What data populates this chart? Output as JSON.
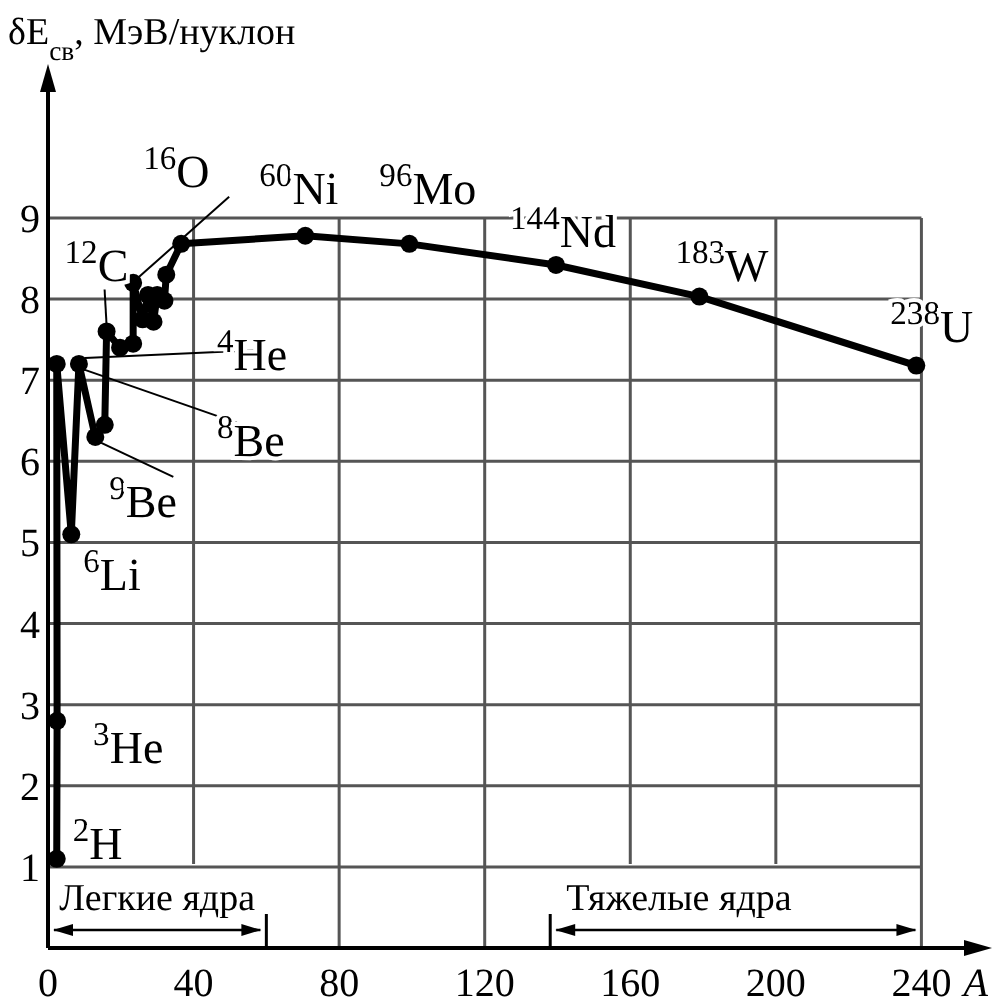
{
  "chart_data": {
    "type": "line",
    "ylabel": "δE$_{св}$, МэВ/нуклон",
    "xlabel": "A",
    "x": [
      2.4,
      2.5,
      2.4,
      6.4,
      8.5,
      13,
      15.6,
      16.1,
      19.8,
      23.4,
      23.4,
      26,
      27.5,
      29,
      30,
      32,
      32.5,
      36.6,
      70.7,
      99.3,
      139.6,
      179,
      238.6
    ],
    "series": [
      {
        "color": "#000000",
        "values": [
          1.1,
          2.8,
          7.2,
          5.1,
          7.2,
          6.3,
          6.45,
          7.6,
          7.4,
          7.45,
          8.2,
          7.75,
          8.05,
          7.72,
          8.05,
          7.98,
          8.3,
          8.68,
          8.78,
          8.68,
          8.42,
          8.03,
          7.18
        ]
      }
    ],
    "xlim": [
      0,
      255
    ],
    "ylim": [
      0,
      10.7
    ],
    "xticks": [
      0,
      40,
      80,
      120,
      160,
      200,
      240
    ],
    "yticks": [
      1,
      2,
      3,
      4,
      5,
      6,
      7,
      8,
      9
    ],
    "grid": true,
    "marker": "circle",
    "line_style": "solid",
    "ref_lines": [
      {
        "axis": "x",
        "value": 60,
        "label": "Легкие ядра"
      },
      {
        "axis": "x",
        "value": 138,
        "label": "Тяжелые ядра"
      }
    ],
    "annotations": [
      {
        "text": "$^{2}$H",
        "x": 2.4,
        "y": 1.1
      },
      {
        "text": "$^{3}$He",
        "x": 2.5,
        "y": 2.8
      },
      {
        "text": "$^{6}$Li",
        "x": 6.4,
        "y": 5.1
      },
      {
        "text": "$^{9}$Be",
        "x": 13,
        "y": 6.3
      },
      {
        "text": "$^{8}$Be",
        "x": 8.5,
        "y": 7.2
      },
      {
        "text": "$^{4}$He",
        "x": 8.5,
        "y": 7.2
      },
      {
        "text": "$^{12}$C",
        "x": 16.1,
        "y": 7.6
      },
      {
        "text": "$^{16}$O",
        "x": 23.4,
        "y": 8.2
      },
      {
        "text": "$^{60}$Ni",
        "x": 70.7,
        "y": 8.78
      },
      {
        "text": "$^{96}$Mo",
        "x": 99.3,
        "y": 8.68
      },
      {
        "text": "$^{144}$Nd",
        "x": 139.6,
        "y": 8.42
      },
      {
        "text": "$^{183}$W",
        "x": 179,
        "y": 8.03
      },
      {
        "text": "$^{238}$U",
        "x": 238.6,
        "y": 7.18
      }
    ]
  }
}
